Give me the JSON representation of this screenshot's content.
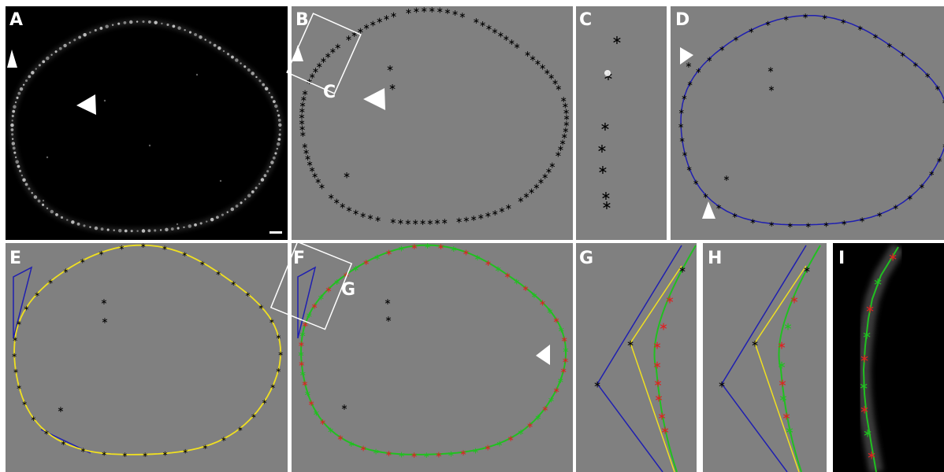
{
  "panels": [
    {
      "id": "A",
      "label": "A",
      "background": "#000000"
    },
    {
      "id": "B",
      "label": "B",
      "background": "#808080"
    },
    {
      "id": "C",
      "label": "C",
      "background": "#808080"
    },
    {
      "id": "D",
      "label": "D",
      "background": "#808080"
    },
    {
      "id": "E",
      "label": "E",
      "background": "#808080"
    },
    {
      "id": "F",
      "label": "F",
      "background": "#808080"
    },
    {
      "id": "G",
      "label": "G",
      "background": "#808080"
    },
    {
      "id": "H",
      "label": "H",
      "background": "#808080"
    },
    {
      "id": "I",
      "label": "I",
      "background": "#000000"
    }
  ],
  "inset_labels": {
    "C": "C",
    "G": "G"
  },
  "colors": {
    "divider": "#ffffff",
    "points": "#000000",
    "convex_hull": "#1f1fb0",
    "refined_outline": "#f0e020",
    "final_fit": "#20c020",
    "selected_points": "#e02020",
    "arrowhead": "#ffffff",
    "signal": "#d8d8d8"
  },
  "icons": {
    "arrowhead": "white-triangle-arrowhead-icon",
    "point": "asterisk-marker-icon",
    "scale_bar": "scale-bar-icon"
  }
}
